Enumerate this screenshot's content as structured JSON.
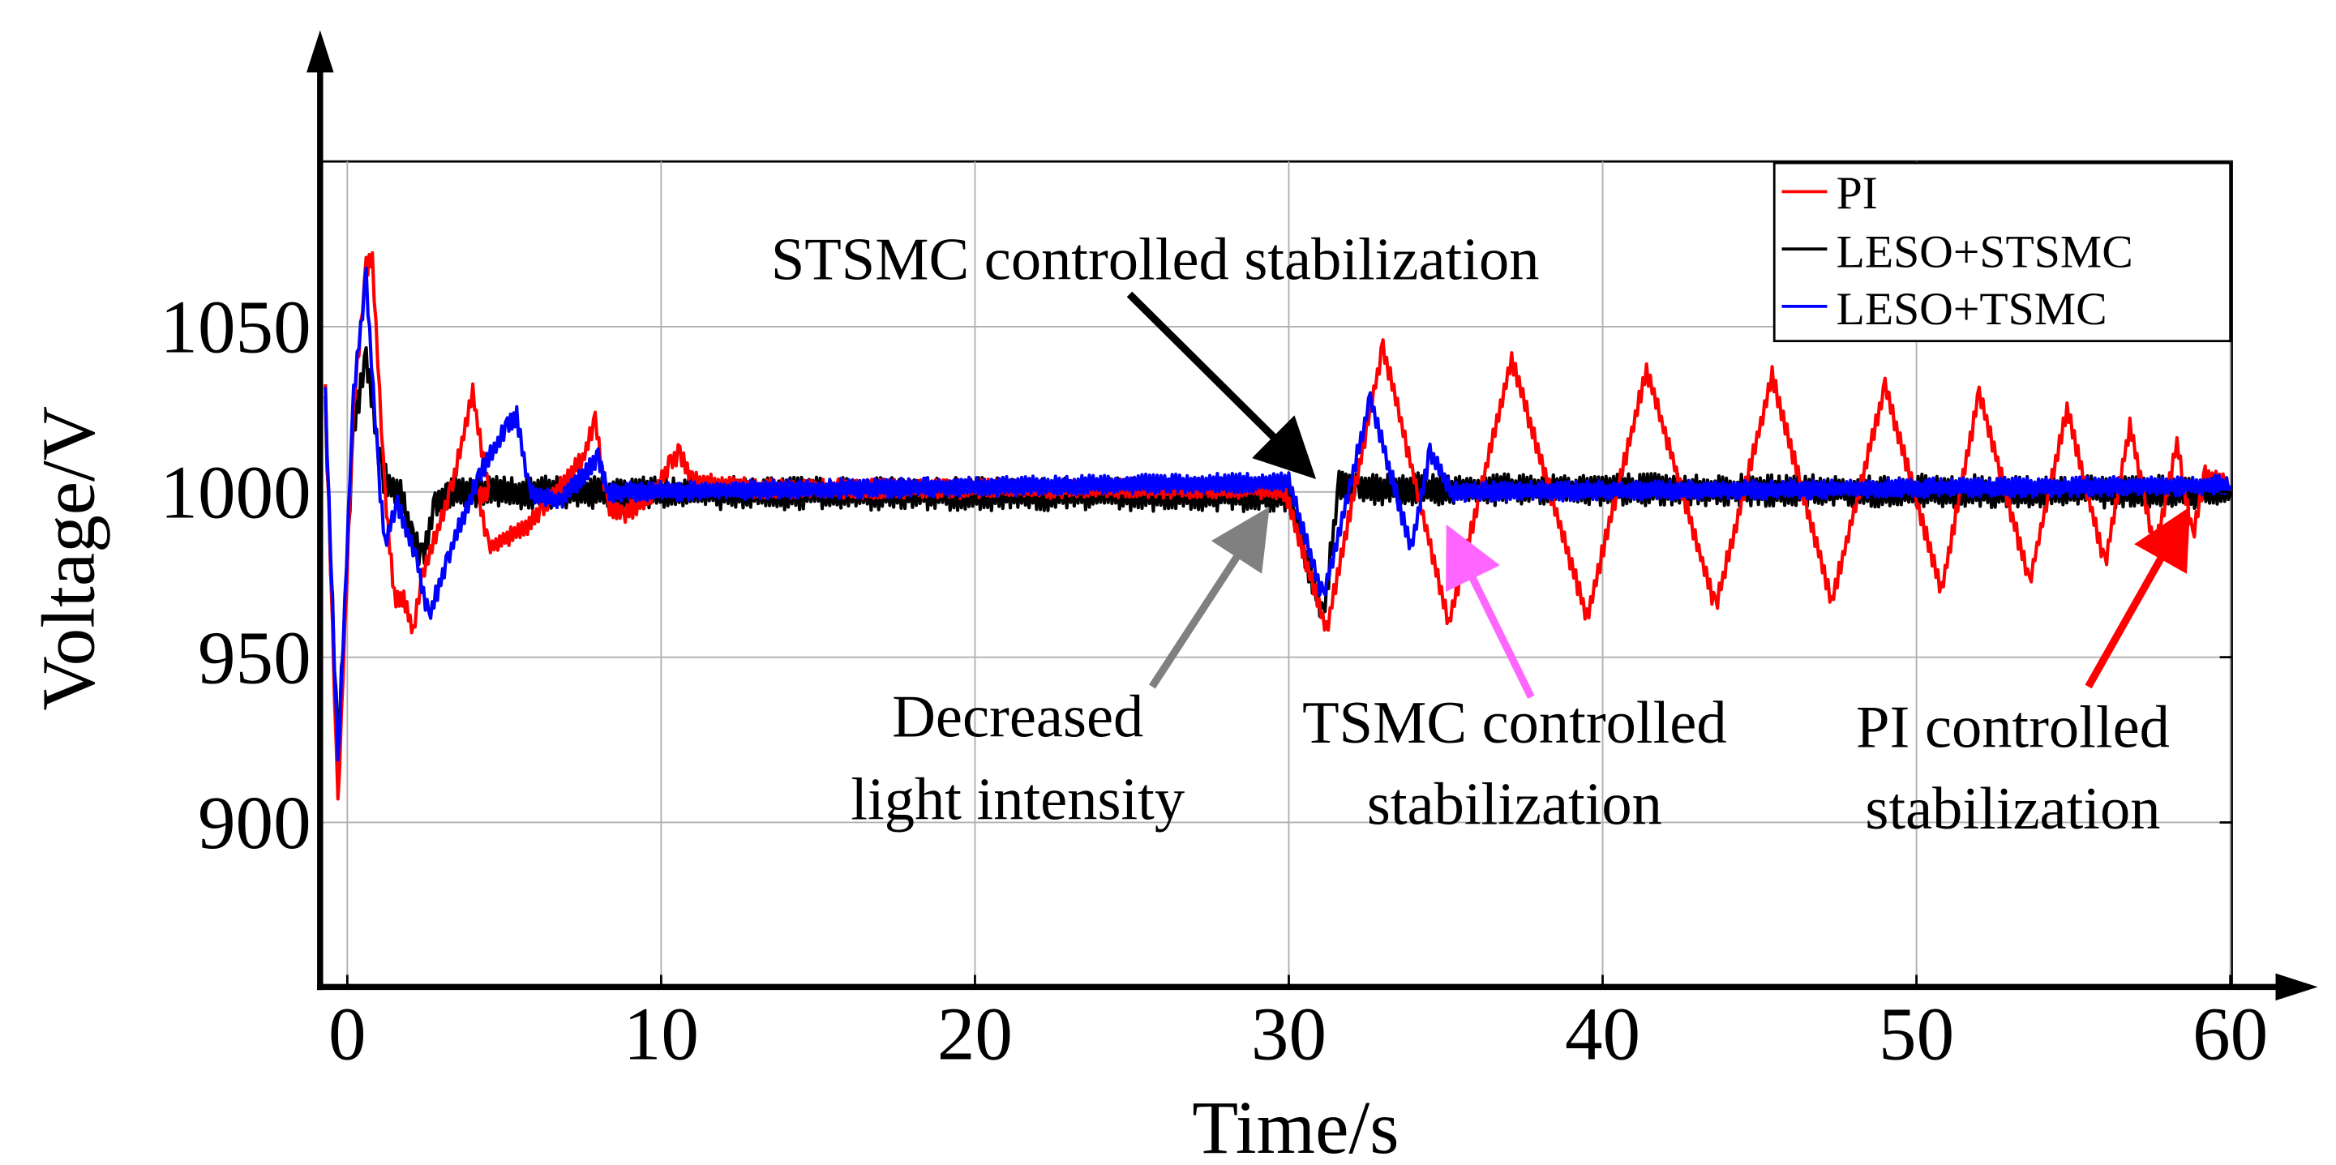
{
  "chart_data": {
    "type": "line",
    "xlabel": "Time/s",
    "ylabel": "Voltage/V",
    "xlim": [
      -0.8,
      60
    ],
    "ylim": [
      850,
      1100
    ],
    "xticks": [
      0,
      10,
      20,
      30,
      40,
      50,
      60
    ],
    "yticks": [
      900,
      950,
      1000,
      1050
    ],
    "grid": true,
    "legend_position": "top-right",
    "series": [
      {
        "name": "PI",
        "color": "#ff0000",
        "noise": 3,
        "points": [
          [
            -0.7,
            1030
          ],
          [
            -0.3,
            905
          ],
          [
            0.2,
            1025
          ],
          [
            0.6,
            1068
          ],
          [
            0.8,
            1070
          ],
          [
            1.2,
            1000
          ],
          [
            1.5,
            968
          ],
          [
            1.8,
            967
          ],
          [
            2.1,
            958
          ],
          [
            2.4,
            975
          ],
          [
            3.3,
            1000
          ],
          [
            4.0,
            1030
          ],
          [
            4.5,
            1000
          ],
          [
            4.2,
            998
          ],
          [
            4.5,
            983
          ],
          [
            5.8,
            990
          ],
          [
            6.2,
            995
          ],
          [
            7.5,
            1010
          ],
          [
            7.9,
            1022
          ],
          [
            8.3,
            995
          ],
          [
            8.8,
            993
          ],
          [
            9.8,
            1000
          ],
          [
            10.3,
            1009
          ],
          [
            10.6,
            1012
          ],
          [
            11.0,
            1003
          ],
          [
            13,
            1001
          ],
          [
            29.3,
            1001
          ],
          [
            29.9,
            1000
          ],
          [
            31.2,
            958
          ],
          [
            33.0,
            1044
          ],
          [
            35.1,
            960
          ],
          [
            37.1,
            1040
          ],
          [
            39.5,
            962
          ],
          [
            41.4,
            1037
          ],
          [
            43.6,
            965
          ],
          [
            45.4,
            1035
          ],
          [
            47.3,
            967
          ],
          [
            49.0,
            1032
          ],
          [
            50.8,
            970
          ],
          [
            52.0,
            1030
          ],
          [
            53.6,
            973
          ],
          [
            54.8,
            1025
          ],
          [
            56.0,
            978
          ],
          [
            56.8,
            1020
          ],
          [
            57.6,
            982
          ],
          [
            58.3,
            1015
          ],
          [
            58.8,
            986
          ],
          [
            59.2,
            1005
          ],
          [
            60,
            1002
          ]
        ]
      },
      {
        "name": "LESO+STSMC",
        "color": "#000000",
        "noise": 5,
        "points": [
          [
            -0.7,
            1025
          ],
          [
            -0.3,
            920
          ],
          [
            0.2,
            1020
          ],
          [
            0.6,
            1040
          ],
          [
            1.1,
            1005
          ],
          [
            1.7,
            999
          ],
          [
            2.1,
            985
          ],
          [
            2.4,
            980
          ],
          [
            2.8,
            996
          ],
          [
            3.2,
            1000
          ],
          [
            30,
            999
          ],
          [
            31.1,
            962
          ],
          [
            31.6,
            1002
          ],
          [
            32.2,
            1001
          ],
          [
            60,
            1000
          ]
        ]
      },
      {
        "name": "LESO+TSMC",
        "color": "#0000ff",
        "noise": 3,
        "points": [
          [
            -0.7,
            1030
          ],
          [
            -0.3,
            917
          ],
          [
            0.2,
            1030
          ],
          [
            0.6,
            1065
          ],
          [
            1.0,
            1005
          ],
          [
            1.2,
            985
          ],
          [
            1.6,
            996
          ],
          [
            2.2,
            980
          ],
          [
            2.6,
            962
          ],
          [
            3.2,
            980
          ],
          [
            4.2,
            1005
          ],
          [
            5.1,
            1020
          ],
          [
            5.4,
            1023
          ],
          [
            5.8,
            1000
          ],
          [
            6.8,
            997
          ],
          [
            7.5,
            1005
          ],
          [
            8.0,
            1010
          ],
          [
            8.3,
            1000
          ],
          [
            30,
            1003
          ],
          [
            31.1,
            968
          ],
          [
            32.6,
            1028
          ],
          [
            33.9,
            983
          ],
          [
            34.5,
            1012
          ],
          [
            35.2,
            1000
          ],
          [
            60,
            1002
          ]
        ]
      }
    ],
    "annotations": [
      {
        "text": "STSMC controlled stabilization",
        "color": "#000000"
      },
      {
        "text": "Decreased",
        "color": "#808080"
      },
      {
        "text": "light intensity",
        "color": "#808080"
      },
      {
        "text": "TSMC controlled",
        "color": "#ff66ff"
      },
      {
        "text": "stabilization",
        "color": "#ff66ff"
      },
      {
        "text": "PI controlled",
        "color": "#ff0000"
      },
      {
        "text": "stabilization",
        "color": "#ff0000"
      }
    ]
  }
}
